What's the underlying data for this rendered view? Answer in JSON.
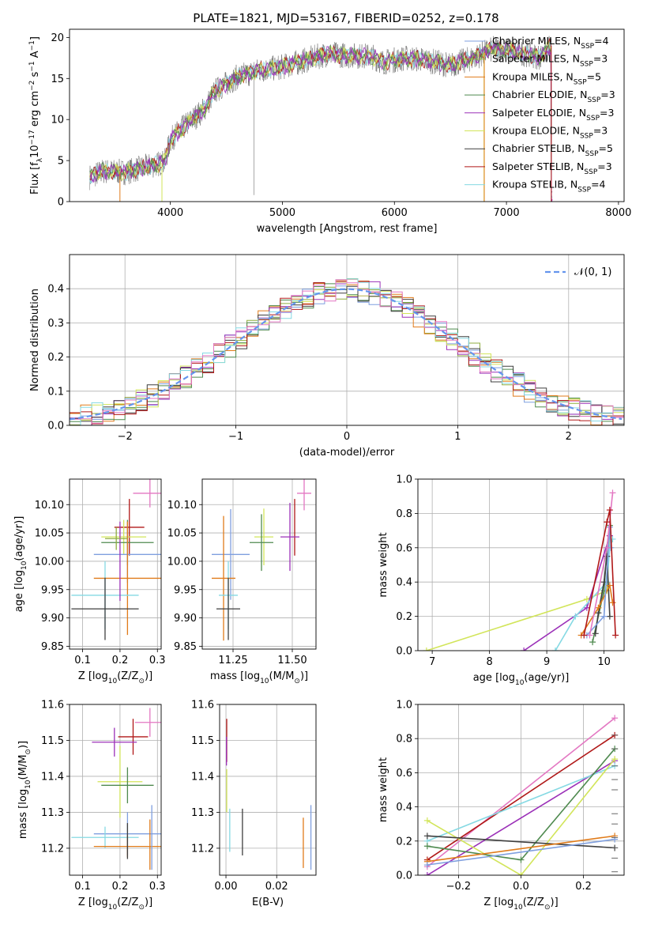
{
  "colors": {
    "Chabrier MILES": "#7f9fdf",
    "Salpeter MILES": "#8fae3f",
    "Kroupa MILES": "#e07b1a",
    "Chabrier ELODIE": "#4f8a4f",
    "Salpeter ELODIE": "#9b30b8",
    "Kroupa ELODIE": "#d2e55a",
    "Chabrier STELIB": "#3f3f3f",
    "Salpeter STELIB": "#b01818",
    "Kroupa STELIB": "#85d9e3",
    "Gaussian": "#6495ed",
    "Pink": "#e377c2"
  },
  "chart_data": [
    {
      "id": "spectrum",
      "type": "line",
      "title": "PLATE=1821, MJD=53167, FIBERID=0252, z=0.178",
      "xlabel": "wavelength [Angstrom, rest frame]",
      "ylabel": "Flux [f_λ10^-17 erg cm^-2 s^-1 A^-1]",
      "xlim": [
        3100,
        8050
      ],
      "ylim": [
        0,
        21
      ],
      "xticks": [
        "4000",
        "5000",
        "6000",
        "7000",
        "8000"
      ],
      "yticks": [
        "0",
        "5",
        "10",
        "15",
        "20"
      ],
      "legend": "right",
      "legend_entries": [
        {
          "label": "Chabrier MILES, N_SSP=4",
          "color": "Chabrier MILES"
        },
        {
          "label": "Salpeter MILES, N_SSP=3",
          "color": "Salpeter MILES"
        },
        {
          "label": "Kroupa MILES, N_SSP=5",
          "color": "Kroupa MILES"
        },
        {
          "label": "Chabrier ELODIE, N_SSP=3",
          "color": "Chabrier ELODIE"
        },
        {
          "label": "Salpeter ELODIE, N_SSP=3",
          "color": "Salpeter ELODIE"
        },
        {
          "label": "Kroupa ELODIE, N_SSP=3",
          "color": "Kroupa ELODIE"
        },
        {
          "label": "Chabrier STELIB, N_SSP=5",
          "color": "Chabrier STELIB"
        },
        {
          "label": "Salpeter STELIB, N_SSP=3",
          "color": "Salpeter STELIB"
        },
        {
          "label": "Kroupa STELIB, N_SSP=4",
          "color": "Kroupa STELIB"
        }
      ],
      "continuum": [
        [
          3280,
          3.0
        ],
        [
          3400,
          3.7
        ],
        [
          3600,
          3.6
        ],
        [
          3800,
          4.3
        ],
        [
          3950,
          4.8
        ],
        [
          4000,
          7.5
        ],
        [
          4150,
          9.5
        ],
        [
          4300,
          11.2
        ],
        [
          4400,
          13.5
        ],
        [
          4600,
          15.2
        ],
        [
          4800,
          16.0
        ],
        [
          5000,
          16.4
        ],
        [
          5200,
          17.2
        ],
        [
          5400,
          18.0
        ],
        [
          5600,
          17.8
        ],
        [
          5800,
          17.7
        ],
        [
          5900,
          17.0
        ],
        [
          6100,
          17.5
        ],
        [
          6300,
          17.2
        ],
        [
          6500,
          16.6
        ],
        [
          6700,
          17.5
        ],
        [
          6900,
          18.7
        ],
        [
          7100,
          18.2
        ],
        [
          7300,
          17.6
        ],
        [
          7400,
          19.0
        ]
      ],
      "model_spikes": [
        {
          "x": 3550,
          "color": "Kroupa MILES"
        },
        {
          "x": 3925,
          "color": "Kroupa ELODIE"
        },
        {
          "x": 6800,
          "color": "Kroupa ELODIE"
        },
        {
          "x": 6802,
          "color": "Kroupa MILES"
        },
        {
          "x": 7400,
          "color": "Salpeter STELIB"
        },
        {
          "x": 7403,
          "color": "Kroupa MILES"
        }
      ]
    },
    {
      "id": "residuals",
      "type": "line",
      "xlabel": "(data-model)/error",
      "ylabel": "Normed distribution",
      "xlim": [
        -2.5,
        2.5
      ],
      "ylim": [
        0,
        0.5
      ],
      "xticks": [
        "−2",
        "−1",
        "0",
        "1",
        "2"
      ],
      "yticks": [
        "0.0",
        "0.1",
        "0.2",
        "0.3",
        "0.4"
      ],
      "legend": "top-right",
      "legend_label": "𝒩(0, 1)",
      "bin_width": 0.1
    },
    {
      "id": "age_vs_Z",
      "type": "scatter",
      "xlabel": "Z [log10(Z/Z☉)]",
      "ylabel": "age  [log10(age/yr)]",
      "xlim": [
        0.065,
        0.31
      ],
      "ylim": [
        9.845,
        10.145
      ],
      "xticks": [
        "0.1",
        "0.2",
        "0.3"
      ],
      "yticks": [
        "9.85",
        "9.90",
        "9.95",
        "10.00",
        "10.05",
        "10.10"
      ],
      "points": [
        {
          "c": "Pink",
          "x": 0.28,
          "y": 10.12,
          "xerr": 0.045,
          "yerr": 0.025
        },
        {
          "c": "Salpeter STELIB",
          "x": 0.225,
          "y": 10.06,
          "xerr": 0.04,
          "yerr": 0.05
        },
        {
          "c": "Kroupa ELODIE",
          "x": 0.21,
          "y": 10.043,
          "xerr": 0.06,
          "yerr": 0.03
        },
        {
          "c": "Chabrier ELODIE",
          "x": 0.22,
          "y": 10.033,
          "xerr": 0.07,
          "yerr": 0.04
        },
        {
          "c": "Chabrier MILES",
          "x": 0.22,
          "y": 10.012,
          "xerr": 0.09,
          "yerr": 0.05
        },
        {
          "c": "Kroupa MILES",
          "x": 0.22,
          "y": 9.97,
          "xerr": 0.09,
          "yerr": 0.1
        },
        {
          "c": "Kroupa STELIB",
          "x": 0.16,
          "y": 9.94,
          "xerr": 0.09,
          "yerr": 0.06
        },
        {
          "c": "Chabrier STELIB",
          "x": 0.16,
          "y": 9.916,
          "xerr": 0.09,
          "yerr": 0.055
        },
        {
          "c": "Salpeter ELODIE",
          "x": 0.2,
          "y": 10.0,
          "xerr": 0.0,
          "yerr": 0.07
        },
        {
          "c": "Salpeter MILES",
          "x": 0.19,
          "y": 10.04,
          "xerr": 0.03,
          "yerr": 0.02
        }
      ]
    },
    {
      "id": "age_vs_mass",
      "type": "scatter",
      "xlabel": "mass [log10(M/M☉)]",
      "ylabel": "",
      "xlim": [
        11.12,
        11.6
      ],
      "ylim": [
        9.845,
        10.145
      ],
      "xticks": [
        "11.25",
        "11.50"
      ],
      "yticks": [
        "9.85",
        "9.90",
        "9.95",
        "10.00",
        "10.05",
        "10.10"
      ],
      "points": [
        {
          "c": "Pink",
          "x": 11.55,
          "y": 10.12,
          "xerr": 0.03,
          "yerr": 0.03
        },
        {
          "c": "Salpeter STELIB",
          "x": 11.51,
          "y": 10.06,
          "xerr": 0.0,
          "yerr": 0.05
        },
        {
          "c": "Salpeter ELODIE",
          "x": 11.49,
          "y": 10.043,
          "xerr": 0.04,
          "yerr": 0.06
        },
        {
          "c": "Kroupa ELODIE",
          "x": 11.38,
          "y": 10.043,
          "xerr": 0.04,
          "yerr": 0.05
        },
        {
          "c": "Chabrier ELODIE",
          "x": 11.37,
          "y": 10.033,
          "xerr": 0.05,
          "yerr": 0.05
        },
        {
          "c": "Chabrier MILES",
          "x": 11.24,
          "y": 10.012,
          "xerr": 0.08,
          "yerr": 0.08
        },
        {
          "c": "Kroupa MILES",
          "x": 11.21,
          "y": 9.97,
          "xerr": 0.05,
          "yerr": 0.11
        },
        {
          "c": "Kroupa STELIB",
          "x": 11.23,
          "y": 9.94,
          "xerr": 0.04,
          "yerr": 0.06
        },
        {
          "c": "Chabrier STELIB",
          "x": 11.23,
          "y": 9.916,
          "xerr": 0.05,
          "yerr": 0.055
        }
      ]
    },
    {
      "id": "weight_vs_age",
      "type": "line",
      "xlabel": "age  [log10(age/yr)]",
      "ylabel": "mass weight",
      "xlim": [
        6.75,
        10.35
      ],
      "ylim": [
        0,
        1
      ],
      "xticks": [
        "7",
        "8",
        "9",
        "10"
      ],
      "yticks": [
        "0.0",
        "0.2",
        "0.4",
        "0.6",
        "0.8",
        "1.0"
      ],
      "series": [
        {
          "c": "Kroupa ELODIE",
          "x": [
            6.9,
            9.7,
            10.05,
            10.1
          ],
          "y": [
            0.0,
            0.3,
            0.35,
            0.67
          ]
        },
        {
          "c": "Salpeter ELODIE",
          "x": [
            8.6,
            9.7,
            10.1
          ],
          "y": [
            0.0,
            0.25,
            0.67
          ]
        },
        {
          "c": "Kroupa STELIB",
          "x": [
            9.15,
            9.5,
            10.05,
            10.1,
            10.15
          ],
          "y": [
            0.0,
            0.2,
            0.4,
            0.6,
            0.65
          ]
        },
        {
          "c": "Chabrier ELODIE",
          "x": [
            9.8,
            10.0,
            10.05,
            10.1
          ],
          "y": [
            0.05,
            0.35,
            0.6,
            0.73
          ]
        },
        {
          "c": "Chabrier STELIB",
          "x": [
            9.85,
            9.9,
            10.0,
            10.05,
            10.1
          ],
          "y": [
            0.1,
            0.22,
            0.4,
            0.55,
            0.2
          ]
        },
        {
          "c": "Kroupa MILES",
          "x": [
            9.6,
            9.9,
            10.1,
            10.15
          ],
          "y": [
            0.09,
            0.25,
            0.38,
            0.28
          ]
        },
        {
          "c": "Chabrier MILES",
          "x": [
            9.7,
            10.0,
            10.1,
            10.12
          ],
          "y": [
            0.09,
            0.2,
            0.72,
            0.6
          ]
        },
        {
          "c": "Pink",
          "x": [
            9.75,
            10.05,
            10.15
          ],
          "y": [
            0.09,
            0.6,
            0.92
          ]
        },
        {
          "c": "Salpeter STELIB",
          "x": [
            9.65,
            10.05,
            10.1,
            10.2
          ],
          "y": [
            0.09,
            0.75,
            0.82,
            0.09
          ]
        }
      ]
    },
    {
      "id": "mass_vs_Z",
      "type": "scatter",
      "xlabel": "Z [log10(Z/Z☉)]",
      "ylabel": "mass [log10(M/M☉)]",
      "xlim": [
        0.065,
        0.31
      ],
      "ylim": [
        11.125,
        11.6
      ],
      "xticks": [
        "0.1",
        "0.2",
        "0.3"
      ],
      "yticks": [
        "11.2",
        "11.3",
        "11.4",
        "11.5",
        "11.6"
      ],
      "points": [
        {
          "c": "Pink",
          "x": 0.28,
          "y": 11.55,
          "xerr": 0.04,
          "yerr": 0.04
        },
        {
          "c": "Salpeter STELIB",
          "x": 0.235,
          "y": 11.51,
          "xerr": 0.04,
          "yerr": 0.05
        },
        {
          "c": "Salpeter ELODIE",
          "x": 0.185,
          "y": 11.495,
          "xerr": 0.06,
          "yerr": 0.04
        },
        {
          "c": "Kroupa ELODIE",
          "x": 0.2,
          "y": 11.385,
          "xerr": 0.06,
          "yerr": 0.1
        },
        {
          "c": "Chabrier ELODIE",
          "x": 0.22,
          "y": 11.375,
          "xerr": 0.07,
          "yerr": 0.05
        },
        {
          "c": "Chabrier MILES",
          "x": 0.22,
          "y": 11.24,
          "xerr": 0.09,
          "yerr": 0.06
        },
        {
          "c": "Kroupa STELIB",
          "x": 0.16,
          "y": 11.23,
          "xerr": 0.09,
          "yerr": 0.03
        },
        {
          "c": "Kroupa MILES",
          "x": 0.22,
          "y": 11.205,
          "xerr": 0.09,
          "yerr": 0.03
        },
        {
          "c": "Chabrier STELIB",
          "x": 0.22,
          "y": 11.22,
          "xerr": 0.0,
          "yerr": 0.05
        },
        {
          "c": "Kroupa MILES",
          "x": 0.28,
          "y": 11.21,
          "xerr": 0.0,
          "yerr": 0.07
        },
        {
          "c": "Chabrier MILES",
          "x": 0.285,
          "y": 11.23,
          "xerr": 0.0,
          "yerr": 0.09
        }
      ]
    },
    {
      "id": "mass_vs_EBV",
      "type": "scatter",
      "xlabel": "E(B-V)",
      "ylabel": "",
      "xlim": [
        -0.0025,
        0.0355
      ],
      "ylim": [
        11.125,
        11.6
      ],
      "xticks": [
        "0.00",
        "0.02"
      ],
      "yticks": [
        "11.2",
        "11.3",
        "11.4",
        "11.5",
        "11.6"
      ],
      "points": [
        {
          "c": "Salpeter STELIB",
          "x": 0.0003,
          "y": 11.5,
          "xerr": 0.0,
          "yerr": 0.06
        },
        {
          "c": "Salpeter ELODIE",
          "x": 0.0002,
          "y": 11.47,
          "xerr": 0.0,
          "yerr": 0.04
        },
        {
          "c": "Kroupa ELODIE",
          "x": 0.0003,
          "y": 11.36,
          "xerr": 0.0,
          "yerr": 0.06
        },
        {
          "c": "Kroupa STELIB",
          "x": 0.0015,
          "y": 11.25,
          "xerr": 0.0,
          "yerr": 0.06
        },
        {
          "c": "Chabrier STELIB",
          "x": 0.0065,
          "y": 11.245,
          "xerr": 0.0,
          "yerr": 0.065
        },
        {
          "c": "Kroupa MILES",
          "x": 0.0305,
          "y": 11.215,
          "xerr": 0.0,
          "yerr": 0.07
        },
        {
          "c": "Chabrier MILES",
          "x": 0.0335,
          "y": 11.23,
          "xerr": 0.0,
          "yerr": 0.09
        }
      ]
    },
    {
      "id": "weight_vs_Z",
      "type": "line",
      "xlabel": "Z [log10(Z/Z☉)]",
      "ylabel": "mass weight",
      "xlim": [
        -0.33,
        0.33
      ],
      "ylim": [
        0,
        1
      ],
      "xticks": [
        "−0.2",
        "0.0",
        "0.2"
      ],
      "yticks": [
        "0.0",
        "0.2",
        "0.4",
        "0.6",
        "0.8",
        "1.0"
      ],
      "series": [
        {
          "c": "Pink",
          "x": [
            -0.3,
            0.3
          ],
          "y": [
            0.05,
            0.92
          ]
        },
        {
          "c": "Salpeter STELIB",
          "x": [
            -0.3,
            0.3
          ],
          "y": [
            0.09,
            0.82
          ]
        },
        {
          "c": "Salpeter ELODIE",
          "x": [
            -0.3,
            0.3
          ],
          "y": [
            0.0,
            0.67
          ]
        },
        {
          "c": "Kroupa STELIB",
          "x": [
            -0.3,
            0.3
          ],
          "y": [
            0.2,
            0.64
          ]
        },
        {
          "c": "Kroupa ELODIE",
          "x": [
            -0.3,
            0.0,
            0.3
          ],
          "y": [
            0.32,
            0.0,
            0.68
          ]
        },
        {
          "c": "Chabrier ELODIE",
          "x": [
            -0.3,
            0.0,
            0.3
          ],
          "y": [
            0.17,
            0.09,
            0.74
          ]
        },
        {
          "c": "Chabrier STELIB",
          "x": [
            -0.3,
            0.3
          ],
          "y": [
            0.23,
            0.16
          ]
        },
        {
          "c": "Kroupa MILES",
          "x": [
            -0.3,
            0.3
          ],
          "y": [
            0.08,
            0.23
          ]
        },
        {
          "c": "Chabrier MILES",
          "x": [
            -0.3,
            0.3
          ],
          "y": [
            0.06,
            0.21
          ]
        }
      ],
      "tick_points": {
        "x": 0.3,
        "y": [
          0.02,
          0.1,
          0.16,
          0.22,
          0.3,
          0.36,
          0.5,
          0.56,
          0.64,
          0.74,
          0.82
        ]
      }
    }
  ]
}
